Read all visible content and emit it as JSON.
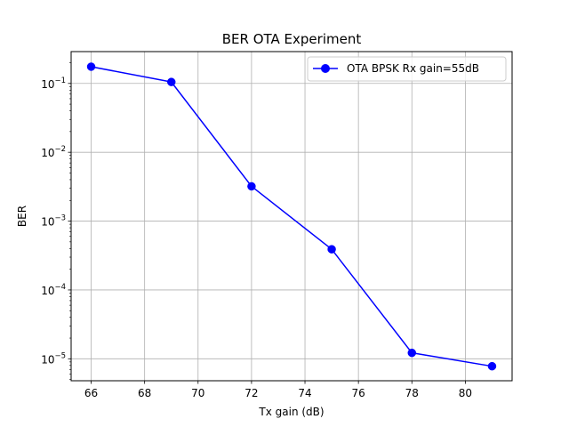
{
  "chart_data": {
    "type": "line",
    "title": "BER OTA Experiment",
    "xlabel": "Tx gain (dB)",
    "ylabel": "BER",
    "x": [
      66,
      69,
      72,
      75,
      78,
      81
    ],
    "series": [
      {
        "name": "OTA BPSK Rx gain=55dB",
        "values": [
          0.175,
          0.105,
          0.0032,
          0.00039,
          1.22e-05,
          7.8e-06
        ],
        "color": "#0000ff",
        "marker": "circle"
      }
    ],
    "xlim": [
      65.25,
      81.75
    ],
    "ylim": [
      4.8e-06,
      0.29
    ],
    "yscale": "log",
    "xticks": [
      66,
      68,
      70,
      72,
      74,
      76,
      78,
      80
    ],
    "yticks": [
      {
        "value": 0.1,
        "base": "10",
        "exp": "−1"
      },
      {
        "value": 0.01,
        "base": "10",
        "exp": "−2"
      },
      {
        "value": 0.001,
        "base": "10",
        "exp": "−3"
      },
      {
        "value": 0.0001,
        "base": "10",
        "exp": "−4"
      },
      {
        "value": 1e-05,
        "base": "10",
        "exp": "−5"
      }
    ],
    "grid": true,
    "legend": "top-right"
  }
}
